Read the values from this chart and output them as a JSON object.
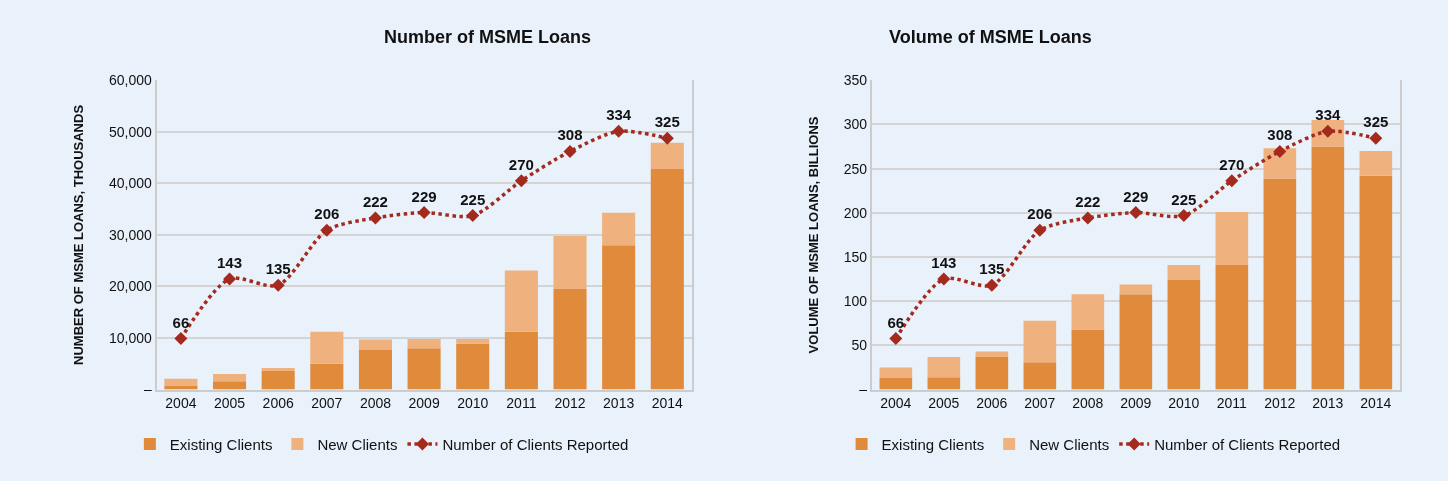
{
  "chart_data": [
    {
      "type": "bar",
      "title": "Number of MSME Loans",
      "ylabel": "NUMBER OF MSME LOANS, THOUSANDS",
      "stacked": true,
      "grid": "y",
      "legend": "bottom",
      "categories": [
        "2004",
        "2005",
        "2006",
        "2007",
        "2008",
        "2009",
        "2010",
        "2011",
        "2012",
        "2013",
        "2014"
      ],
      "ylim": [
        0,
        60000
      ],
      "yticks": [
        {
          "value": 0,
          "label": "–"
        },
        {
          "value": 10000,
          "label": "10,000"
        },
        {
          "value": 20000,
          "label": "20,000"
        },
        {
          "value": 30000,
          "label": "30,000"
        },
        {
          "value": 40000,
          "label": "40,000"
        },
        {
          "value": 50000,
          "label": "50,000"
        },
        {
          "value": 60000,
          "label": "60,000"
        }
      ],
      "y2lim": [
        0,
        400
      ],
      "series": [
        {
          "name": "Existing Clients",
          "color": "#e08a3c",
          "values": [
            800,
            1600,
            3600,
            5000,
            7700,
            8000,
            8900,
            11200,
            19500,
            28000,
            42800
          ]
        },
        {
          "name": "New Clients",
          "color": "#efb27e",
          "values": [
            1300,
            1400,
            600,
            6200,
            2000,
            1800,
            900,
            11900,
            10300,
            6300,
            5100
          ]
        },
        {
          "name": "Number of Clients Reported",
          "type": "line",
          "axis": "y2",
          "color": "#a52a1e",
          "marker": "diamond",
          "line_style": "dotted",
          "values": [
            66,
            143,
            135,
            206,
            222,
            229,
            225,
            270,
            308,
            334,
            325
          ],
          "value_labels": [
            "66",
            "143",
            "135",
            "206",
            "222",
            "229",
            "225",
            "270",
            "308",
            "334",
            "325"
          ]
        }
      ]
    },
    {
      "type": "bar",
      "title": "Volume of MSME Loans",
      "ylabel": "VOLUME OF MSME LOANS, BILLIONS",
      "stacked": true,
      "grid": "y",
      "legend": "bottom",
      "categories": [
        "2004",
        "2005",
        "2006",
        "2007",
        "2008",
        "2009",
        "2010",
        "2011",
        "2012",
        "2013",
        "2014"
      ],
      "ylim": [
        0,
        350
      ],
      "yticks": [
        {
          "value": 0,
          "label": "–"
        },
        50,
        100,
        150,
        200,
        250,
        300,
        350
      ],
      "y2lim": [
        0,
        400
      ],
      "series": [
        {
          "name": "Existing Clients",
          "color": "#e08a3c",
          "values": [
            13,
            14,
            37,
            31,
            68,
            108,
            124,
            141,
            239,
            275,
            242
          ]
        },
        {
          "name": "New Clients",
          "color": "#efb27e",
          "values": [
            12,
            23,
            6,
            47,
            40,
            11,
            17,
            60,
            34,
            30,
            28
          ]
        },
        {
          "name": "Number of Clients Reported",
          "type": "line",
          "axis": "y2",
          "color": "#a52a1e",
          "marker": "diamond",
          "line_style": "dotted",
          "values": [
            66,
            143,
            135,
            206,
            222,
            229,
            225,
            270,
            308,
            334,
            325
          ],
          "value_labels": [
            "66",
            "143",
            "135",
            "206",
            "222",
            "229",
            "225",
            "270",
            "308",
            "334",
            "325"
          ]
        }
      ]
    }
  ]
}
